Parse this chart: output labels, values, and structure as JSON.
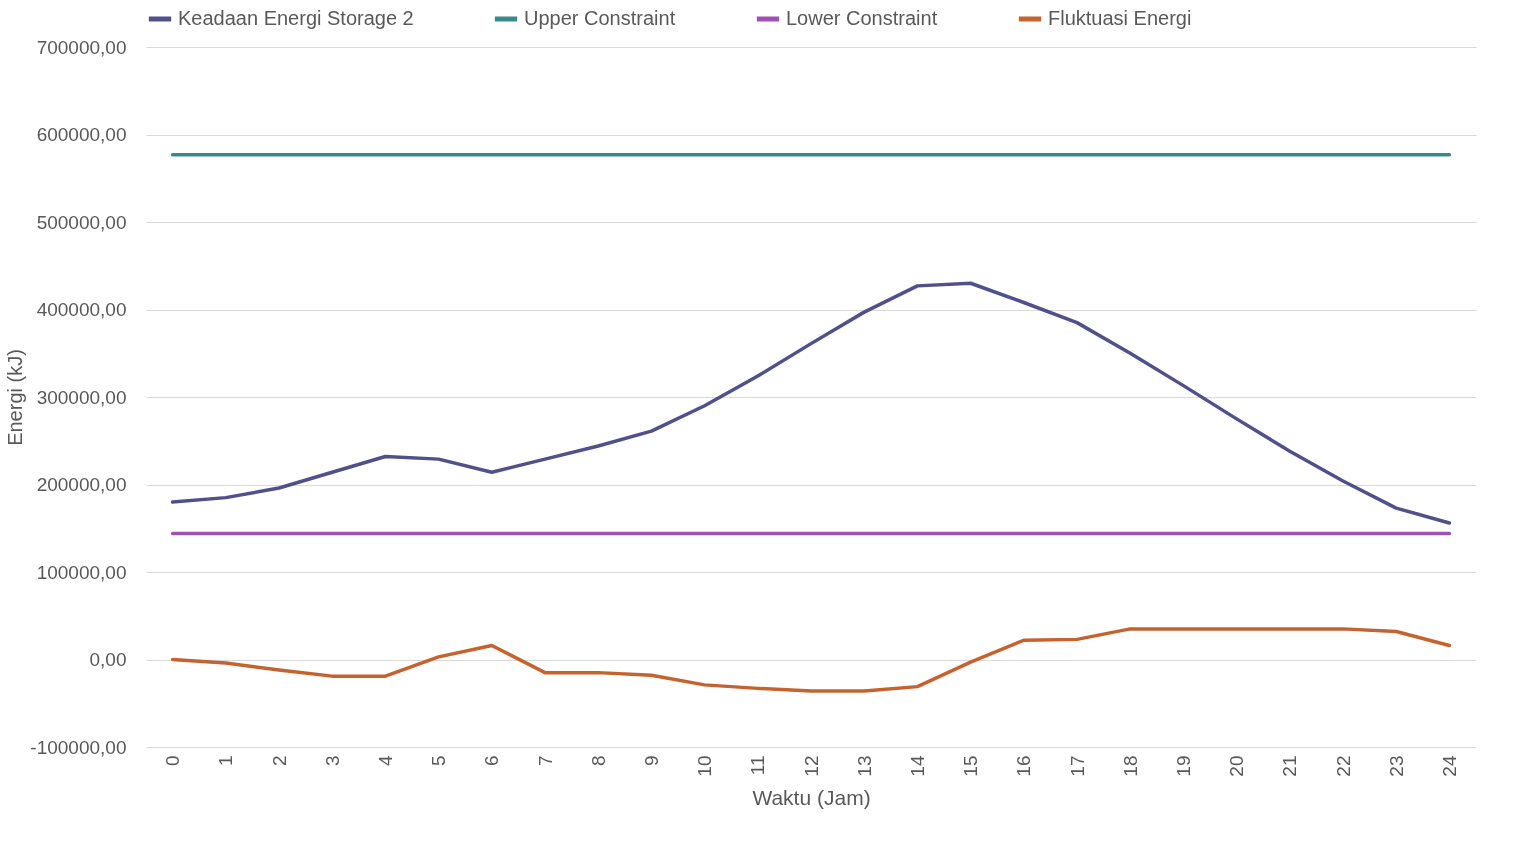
{
  "chart_data": {
    "type": "line",
    "xlabel": "Waktu (Jam)",
    "ylabel": "Energi (kJ)",
    "categories": [
      "0",
      "1",
      "2",
      "3",
      "4",
      "5",
      "6",
      "7",
      "8",
      "9",
      "10",
      "11",
      "12",
      "13",
      "14",
      "15",
      "16",
      "17",
      "18",
      "19",
      "20",
      "21",
      "22",
      "23",
      "24"
    ],
    "series": [
      {
        "name": "Keadaan Energi Storage 2",
        "color": "#50508a",
        "values": [
          180000,
          185000,
          196000,
          214000,
          232000,
          229000,
          214000,
          229000,
          244000,
          261000,
          290000,
          324000,
          361000,
          397000,
          427000,
          430000,
          408000,
          385000,
          350000,
          313000,
          275000,
          238000,
          204000,
          173000,
          156000
        ]
      },
      {
        "name": "Upper Constraint",
        "color": "#3a8a88",
        "values": [
          577000,
          577000,
          577000,
          577000,
          577000,
          577000,
          577000,
          577000,
          577000,
          577000,
          577000,
          577000,
          577000,
          577000,
          577000,
          577000,
          577000,
          577000,
          577000,
          577000,
          577000,
          577000,
          577000,
          577000,
          577000
        ]
      },
      {
        "name": "Lower Constraint",
        "color": "#a052b4",
        "values": [
          144000,
          144000,
          144000,
          144000,
          144000,
          144000,
          144000,
          144000,
          144000,
          144000,
          144000,
          144000,
          144000,
          144000,
          144000,
          144000,
          144000,
          144000,
          144000,
          144000,
          144000,
          144000,
          144000,
          144000,
          144000
        ]
      },
      {
        "name": "Fluktuasi Energi",
        "color": "#c6622e",
        "values": [
          0,
          -4000,
          -12000,
          -19000,
          -19000,
          3000,
          16000,
          -15000,
          -15000,
          -18000,
          -29000,
          -33000,
          -36000,
          -36000,
          -31000,
          -3000,
          22000,
          23000,
          35000,
          35000,
          35000,
          35000,
          35000,
          32000,
          16000
        ]
      }
    ],
    "ylim": [
      -100000,
      700000
    ],
    "yticks": [
      {
        "value": -100000,
        "label": "-100000,00"
      },
      {
        "value": 0,
        "label": "0,00"
      },
      {
        "value": 100000,
        "label": "100000,00"
      },
      {
        "value": 200000,
        "label": "200000,00"
      },
      {
        "value": 300000,
        "label": "300000,00"
      },
      {
        "value": 400000,
        "label": "400000,00"
      },
      {
        "value": 500000,
        "label": "500000,00"
      },
      {
        "value": 600000,
        "label": "600000,00"
      },
      {
        "value": 700000,
        "label": "700000,00"
      }
    ],
    "grid": "y",
    "legend": "top",
    "marker": "none",
    "line_style": "solid"
  }
}
